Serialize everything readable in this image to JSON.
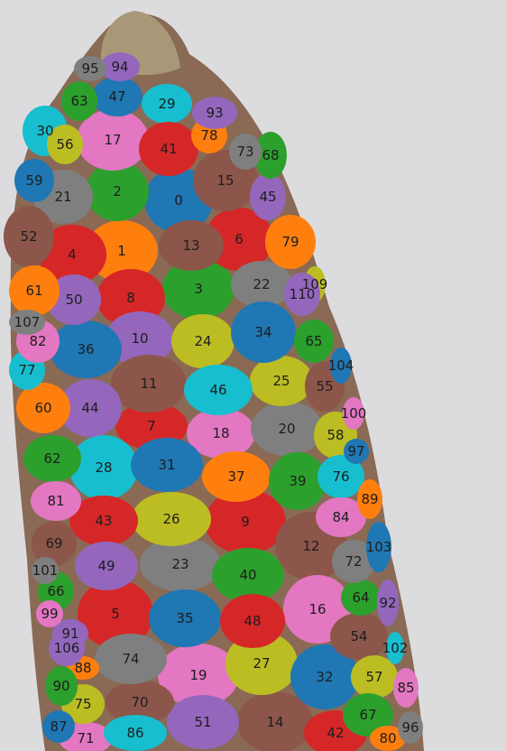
{
  "image": {
    "subject": "corn cob with numbered segmented kernels",
    "background_color": "#dcdcdf",
    "cob_color": "#8a6a55",
    "tip_color": "#a89878",
    "kernels": [
      {
        "id": "0",
        "label": "0",
        "color": "#1f77b4"
      },
      {
        "id": "1",
        "label": "1",
        "color": "#ff7f0e"
      },
      {
        "id": "2",
        "label": "2",
        "color": "#2ca02c"
      },
      {
        "id": "3",
        "label": "3",
        "color": "#2ca02c"
      },
      {
        "id": "4",
        "label": "4",
        "color": "#d62728"
      },
      {
        "id": "5",
        "label": "5",
        "color": "#d62728"
      },
      {
        "id": "6",
        "label": "6",
        "color": "#d62728"
      },
      {
        "id": "7",
        "label": "7",
        "color": "#d62728"
      },
      {
        "id": "8",
        "label": "8",
        "color": "#d62728"
      },
      {
        "id": "9",
        "label": "9",
        "color": "#d62728"
      },
      {
        "id": "10",
        "label": "10",
        "color": "#9467bd"
      },
      {
        "id": "11",
        "label": "11",
        "color": "#8c564b"
      },
      {
        "id": "12",
        "label": "12",
        "color": "#8c564b"
      },
      {
        "id": "13",
        "label": "13",
        "color": "#8c564b"
      },
      {
        "id": "14",
        "label": "14",
        "color": "#8c564b"
      },
      {
        "id": "15",
        "label": "15",
        "color": "#8c564b"
      },
      {
        "id": "16",
        "label": "16",
        "color": "#e377c2"
      },
      {
        "id": "17",
        "label": "17",
        "color": "#e377c2"
      },
      {
        "id": "18",
        "label": "18",
        "color": "#e377c2"
      },
      {
        "id": "19",
        "label": "19",
        "color": "#e377c2"
      },
      {
        "id": "20",
        "label": "20",
        "color": "#7f7f7f"
      },
      {
        "id": "21",
        "label": "21",
        "color": "#7f7f7f"
      },
      {
        "id": "22",
        "label": "22",
        "color": "#7f7f7f"
      },
      {
        "id": "23",
        "label": "23",
        "color": "#7f7f7f"
      },
      {
        "id": "24",
        "label": "24",
        "color": "#bcbd22"
      },
      {
        "id": "25",
        "label": "25",
        "color": "#bcbd22"
      },
      {
        "id": "26",
        "label": "26",
        "color": "#bcbd22"
      },
      {
        "id": "27",
        "label": "27",
        "color": "#bcbd22"
      },
      {
        "id": "28",
        "label": "28",
        "color": "#17becf"
      },
      {
        "id": "29",
        "label": "29",
        "color": "#17becf"
      },
      {
        "id": "30",
        "label": "30",
        "color": "#17becf"
      },
      {
        "id": "31",
        "label": "31",
        "color": "#1f77b4"
      },
      {
        "id": "32",
        "label": "32",
        "color": "#1f77b4"
      },
      {
        "id": "34",
        "label": "34",
        "color": "#1f77b4"
      },
      {
        "id": "35",
        "label": "35",
        "color": "#1f77b4"
      },
      {
        "id": "36",
        "label": "36",
        "color": "#1f77b4"
      },
      {
        "id": "37",
        "label": "37",
        "color": "#ff7f0e"
      },
      {
        "id": "39",
        "label": "39",
        "color": "#2ca02c"
      },
      {
        "id": "40",
        "label": "40",
        "color": "#2ca02c"
      },
      {
        "id": "41",
        "label": "41",
        "color": "#d62728"
      },
      {
        "id": "42",
        "label": "42",
        "color": "#d62728"
      },
      {
        "id": "43",
        "label": "43",
        "color": "#d62728"
      },
      {
        "id": "44",
        "label": "44",
        "color": "#9467bd"
      },
      {
        "id": "45",
        "label": "45",
        "color": "#9467bd"
      },
      {
        "id": "46",
        "label": "46",
        "color": "#17becf"
      },
      {
        "id": "47",
        "label": "47",
        "color": "#1f77b4"
      },
      {
        "id": "48",
        "label": "48",
        "color": "#d62728"
      },
      {
        "id": "49",
        "label": "49",
        "color": "#9467bd"
      },
      {
        "id": "50",
        "label": "50",
        "color": "#9467bd"
      },
      {
        "id": "51",
        "label": "51",
        "color": "#9467bd"
      },
      {
        "id": "52",
        "label": "52",
        "color": "#8c564b"
      },
      {
        "id": "54",
        "label": "54",
        "color": "#8c564b"
      },
      {
        "id": "55",
        "label": "55",
        "color": "#8c564b"
      },
      {
        "id": "56",
        "label": "56",
        "color": "#bcbd22"
      },
      {
        "id": "57",
        "label": "57",
        "color": "#bcbd22"
      },
      {
        "id": "58",
        "label": "58",
        "color": "#bcbd22"
      },
      {
        "id": "59",
        "label": "59",
        "color": "#1f77b4"
      },
      {
        "id": "60",
        "label": "60",
        "color": "#ff7f0e"
      },
      {
        "id": "61",
        "label": "61",
        "color": "#ff7f0e"
      },
      {
        "id": "62",
        "label": "62",
        "color": "#2ca02c"
      },
      {
        "id": "63",
        "label": "63",
        "color": "#2ca02c"
      },
      {
        "id": "64",
        "label": "64",
        "color": "#2ca02c"
      },
      {
        "id": "65",
        "label": "65",
        "color": "#2ca02c"
      },
      {
        "id": "66",
        "label": "66",
        "color": "#2ca02c"
      },
      {
        "id": "67",
        "label": "67",
        "color": "#2ca02c"
      },
      {
        "id": "68",
        "label": "68",
        "color": "#2ca02c"
      },
      {
        "id": "69",
        "label": "69",
        "color": "#8c564b"
      },
      {
        "id": "70",
        "label": "70",
        "color": "#8c564b"
      },
      {
        "id": "71",
        "label": "71",
        "color": "#e377c2"
      },
      {
        "id": "72",
        "label": "72",
        "color": "#7f7f7f"
      },
      {
        "id": "73",
        "label": "73",
        "color": "#7f7f7f"
      },
      {
        "id": "74",
        "label": "74",
        "color": "#7f7f7f"
      },
      {
        "id": "75",
        "label": "75",
        "color": "#bcbd22"
      },
      {
        "id": "76",
        "label": "76",
        "color": "#17becf"
      },
      {
        "id": "77",
        "label": "77",
        "color": "#17becf"
      },
      {
        "id": "78",
        "label": "78",
        "color": "#ff7f0e"
      },
      {
        "id": "79",
        "label": "79",
        "color": "#ff7f0e"
      },
      {
        "id": "80",
        "label": "80",
        "color": "#ff7f0e"
      },
      {
        "id": "81",
        "label": "81",
        "color": "#e377c2"
      },
      {
        "id": "82",
        "label": "82",
        "color": "#e377c2"
      },
      {
        "id": "84",
        "label": "84",
        "color": "#e377c2"
      },
      {
        "id": "85",
        "label": "85",
        "color": "#e377c2"
      },
      {
        "id": "86",
        "label": "86",
        "color": "#17becf"
      },
      {
        "id": "87",
        "label": "87",
        "color": "#1f77b4"
      },
      {
        "id": "88",
        "label": "88",
        "color": "#ff7f0e"
      },
      {
        "id": "89",
        "label": "89",
        "color": "#ff7f0e"
      },
      {
        "id": "90",
        "label": "90",
        "color": "#2ca02c"
      },
      {
        "id": "91",
        "label": "91",
        "color": "#9467bd"
      },
      {
        "id": "92",
        "label": "92",
        "color": "#9467bd"
      },
      {
        "id": "93",
        "label": "93",
        "color": "#9467bd"
      },
      {
        "id": "94",
        "label": "94",
        "color": "#9467bd"
      },
      {
        "id": "95",
        "label": "95",
        "color": "#7f7f7f"
      },
      {
        "id": "96",
        "label": "96",
        "color": "#7f7f7f"
      },
      {
        "id": "97",
        "label": "97",
        "color": "#1f77b4"
      },
      {
        "id": "99",
        "label": "99",
        "color": "#e377c2"
      },
      {
        "id": "100",
        "label": "100",
        "color": "#e377c2"
      },
      {
        "id": "101",
        "label": "101",
        "color": "#7f7f7f"
      },
      {
        "id": "102",
        "label": "102",
        "color": "#17becf"
      },
      {
        "id": "103",
        "label": "103",
        "color": "#1f77b4"
      },
      {
        "id": "104",
        "label": "104",
        "color": "#1f77b4"
      },
      {
        "id": "106",
        "label": "106",
        "color": "#9467bd"
      },
      {
        "id": "107",
        "label": "107",
        "color": "#7f7f7f"
      },
      {
        "id": "109",
        "label": "109",
        "color": "#bcbd22"
      },
      {
        "id": "110",
        "label": "110",
        "color": "#9467bd"
      }
    ]
  }
}
